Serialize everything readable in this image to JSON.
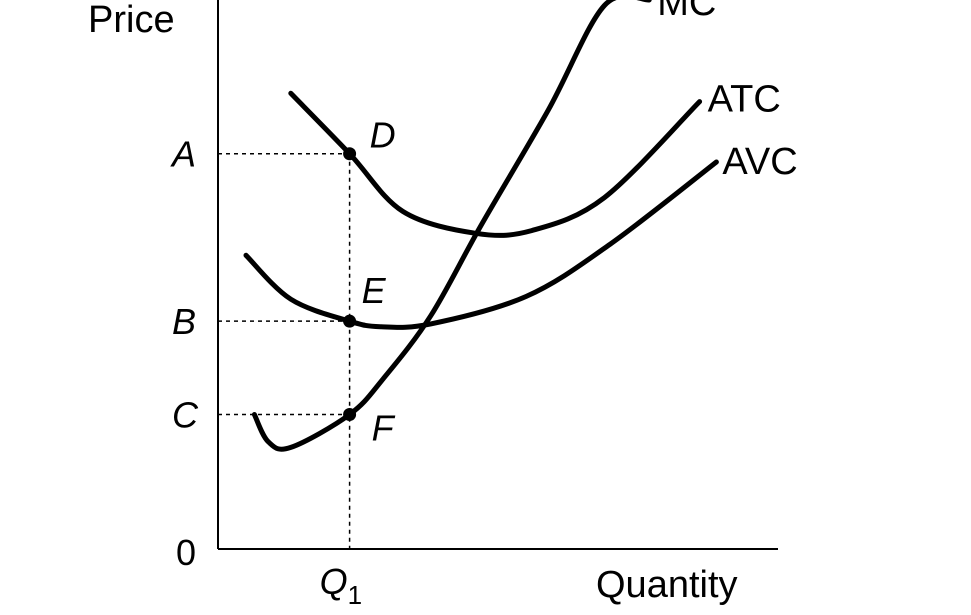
{
  "chart_data": {
    "type": "line",
    "title": "",
    "ylabel": "Price",
    "xlabel": "Quantity",
    "origin_label": "0",
    "xlim": [
      0,
      10
    ],
    "ylim": [
      0,
      10
    ],
    "x_ticks": [
      {
        "label": "Q",
        "subscript": "1",
        "value": 2.35
      }
    ],
    "y_ticks": [
      {
        "label": "A",
        "value": 7.2
      },
      {
        "label": "B",
        "value": 4.15
      },
      {
        "label": "C",
        "value": 2.45
      }
    ],
    "series": [
      {
        "name": "ATC",
        "x": [
          1.3,
          2.35,
          3.3,
          4.6,
          5.6,
          6.9,
          8.6
        ],
        "y": [
          8.3,
          7.2,
          6.15,
          5.75,
          5.8,
          6.4,
          8.15
        ]
      },
      {
        "name": "AVC",
        "x": [
          0.5,
          1.3,
          2.35,
          2.9,
          3.8,
          5.5,
          7.0,
          8.9
        ],
        "y": [
          5.35,
          4.55,
          4.15,
          4.05,
          4.1,
          4.6,
          5.55,
          7.05
        ]
      },
      {
        "name": "MC",
        "x": [
          0.65,
          0.9,
          1.3,
          2.35,
          2.95,
          3.8,
          4.7,
          5.9,
          6.9,
          7.7
        ],
        "y": [
          2.45,
          1.95,
          1.85,
          2.45,
          3.1,
          4.25,
          5.9,
          8.0,
          9.9,
          10.0
        ]
      }
    ],
    "points": [
      {
        "label": "D",
        "x": 2.35,
        "y": 7.2
      },
      {
        "label": "E",
        "x": 2.35,
        "y": 4.15
      },
      {
        "label": "F",
        "x": 2.35,
        "y": 2.45
      }
    ],
    "grid": false,
    "legend": "none"
  }
}
